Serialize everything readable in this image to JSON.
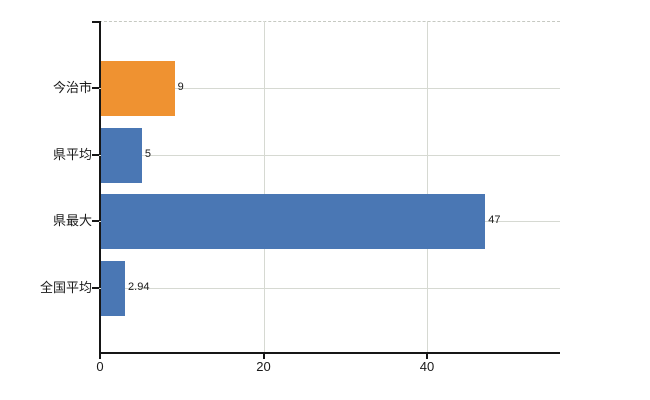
{
  "chart_data": {
    "type": "bar",
    "orientation": "horizontal",
    "title": "",
    "categories": [
      "今治市",
      "県平均",
      "県最大",
      "全国平均"
    ],
    "values": [
      9,
      5,
      47,
      2.94
    ],
    "value_labels": [
      "9",
      "5",
      "47",
      "2.94"
    ],
    "bar_colors": [
      "#ef9231",
      "#4a77b4",
      "#4a77b4",
      "#4a77b4"
    ],
    "x_ticks": [
      0,
      20,
      40
    ],
    "x_tick_labels": [
      "0",
      "20",
      "40"
    ],
    "xlim": [
      0,
      56.4
    ],
    "grid": true,
    "legend": false,
    "colors": {
      "highlight_bar": "#ef9231",
      "default_bar": "#4a77b4",
      "axis": "#161616",
      "gridline": "#d6d9d2",
      "top_border_dashed": "#c6c9c2",
      "text": "#1a1a1a",
      "background": "#ffffff"
    }
  }
}
